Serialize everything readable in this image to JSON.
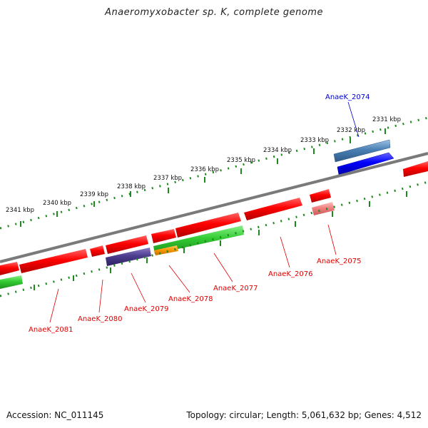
{
  "title": "Anaeromyxobacter sp. K, complete genome",
  "footer": {
    "accession": "Accession: NC_011145",
    "summary": "Topology: circular; Length: 5,061,632 bp; Genes: 4,512"
  },
  "colors": {
    "backbone": "#7a7a7a",
    "ticks": "#1e8a1e",
    "gene_red": "#ff0000",
    "gene_green": "#33cc33",
    "gene_purple": "#4d3d8f",
    "gene_steel": "#4a7fb3",
    "gene_blue": "#0000ff",
    "gene_pink": "#f08080",
    "gene_orange": "#ff9900",
    "label_red": "#dd0000",
    "label_blue": "#0000cc"
  },
  "ruler_labels": [
    "2331 kbp",
    "2332 kbp",
    "2333 kbp",
    "2334 kbp",
    "2335 kbp",
    "2336 kbp",
    "2337 kbp",
    "2338 kbp",
    "2339 kbp",
    "2340 kbp",
    "2341 kbp"
  ],
  "gene_labels": [
    {
      "text": "AnaeK_2074",
      "color": "blue"
    },
    {
      "text": "AnaeK_2075",
      "color": "red"
    },
    {
      "text": "AnaeK_2076",
      "color": "red"
    },
    {
      "text": "AnaeK_2077",
      "color": "red"
    },
    {
      "text": "AnaeK_2078",
      "color": "red"
    },
    {
      "text": "AnaeK_2079",
      "color": "red"
    },
    {
      "text": "AnaeK_2080",
      "color": "red"
    },
    {
      "text": "AnaeK_2081",
      "color": "red"
    }
  ]
}
